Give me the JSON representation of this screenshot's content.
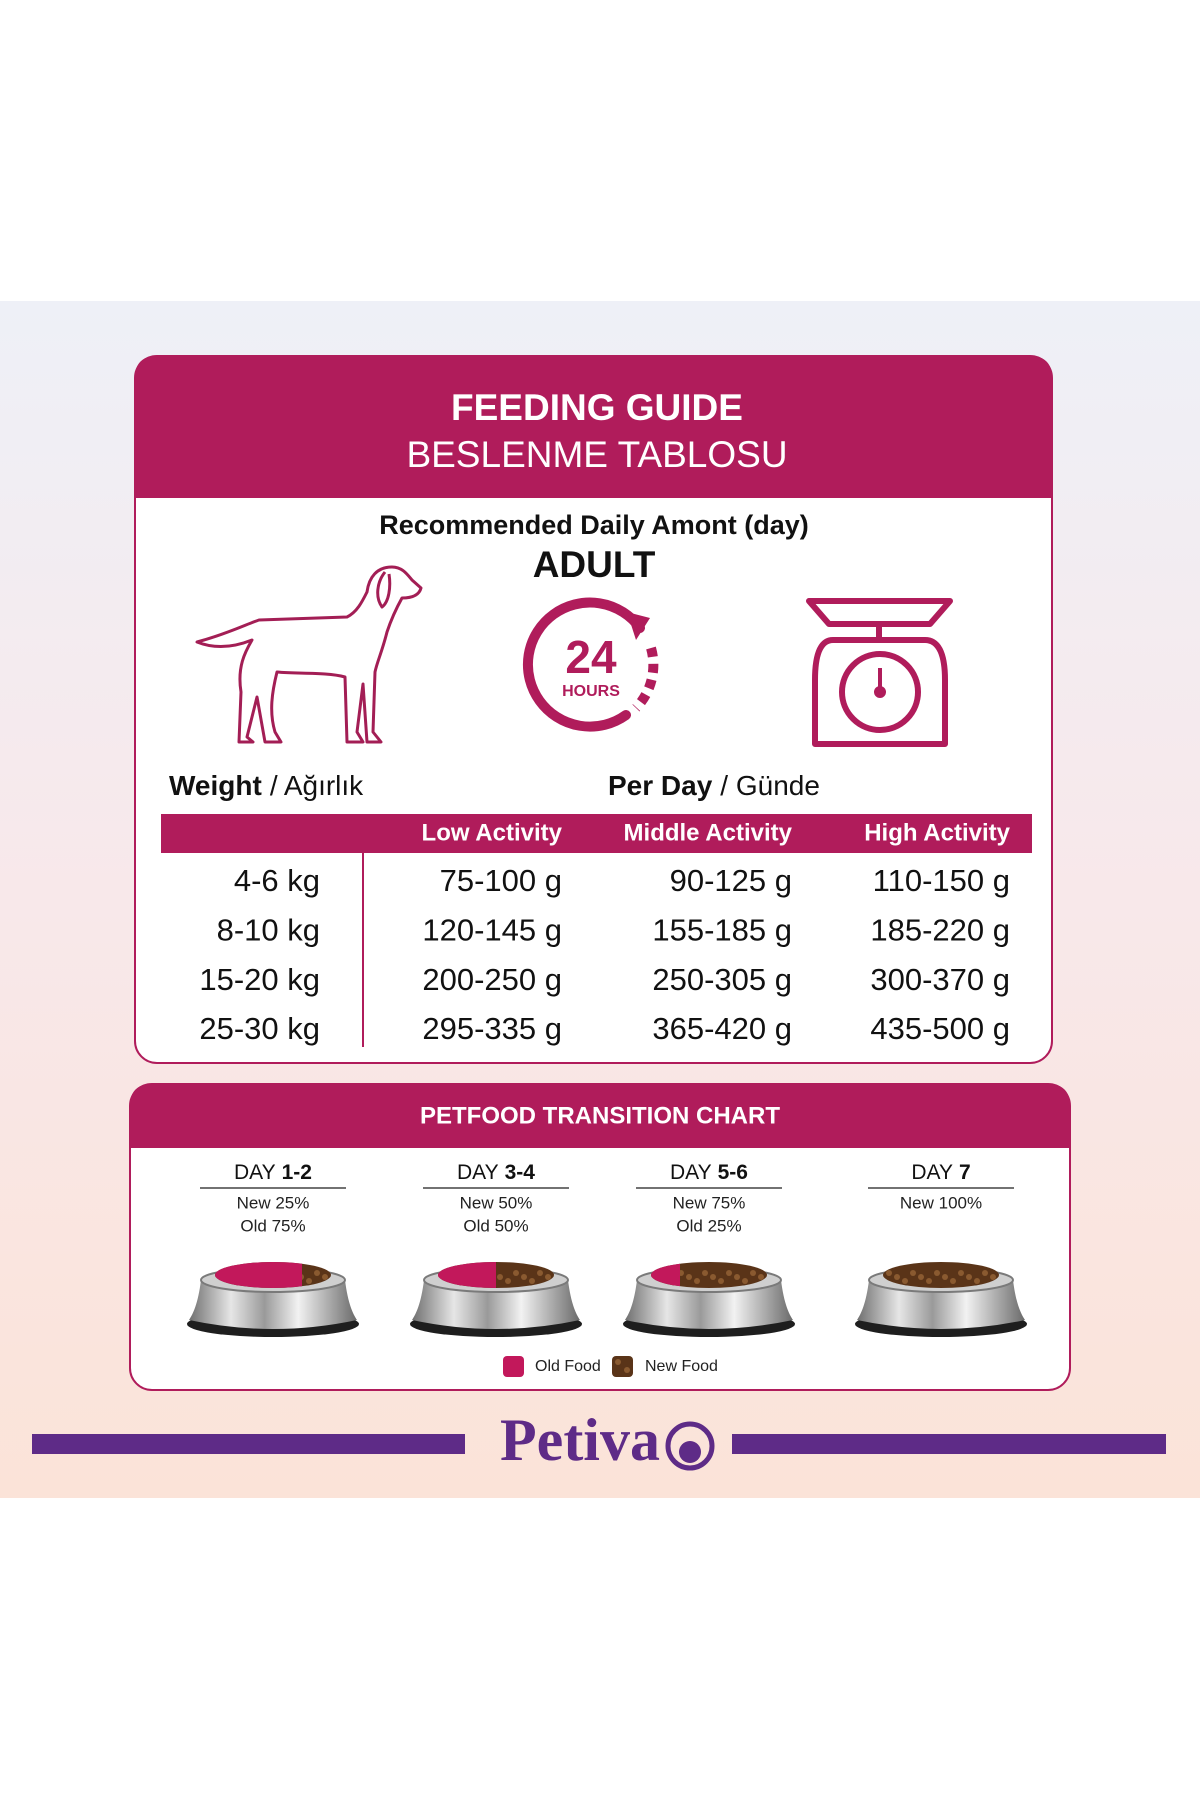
{
  "header": {
    "title": "FEEDING GUIDE",
    "subtitle": "BESLENME TABLOSU"
  },
  "intro": {
    "heading": "Recommended Daily Amont (day)",
    "stage": "ADULT"
  },
  "icons": {
    "clock_number": "24",
    "clock_unit": "HOURS"
  },
  "labels": {
    "weight": {
      "bold": "Weight",
      "rest": "/ Ağırlık"
    },
    "per_day": {
      "bold": "Per Day",
      "rest": "/ Günde"
    }
  },
  "table": {
    "columns": [
      "Low Activity",
      "Middle Activity",
      "High Activity"
    ],
    "rows": [
      [
        "4-6 kg",
        "75-100 g",
        "90-125 g",
        "110-150 g"
      ],
      [
        "8-10 kg",
        "120-145 g",
        "155-185 g",
        "185-220 g"
      ],
      [
        "15-20 kg",
        "200-250 g",
        "250-305 g",
        "300-370 g"
      ],
      [
        "25-30 kg",
        "295-335 g",
        "365-420 g",
        "435-500 g"
      ]
    ]
  },
  "transition": {
    "title": "PETFOOD TRANSITION CHART",
    "days": [
      {
        "prefix": "DAY",
        "range": "1-2",
        "lines": [
          "New 25%",
          "Old 75%"
        ]
      },
      {
        "prefix": "DAY",
        "range": "3-4",
        "lines": [
          "New 50%",
          "Old 50%"
        ]
      },
      {
        "prefix": "DAY",
        "range": "5-6",
        "lines": [
          "New 75%",
          "Old 25%"
        ]
      },
      {
        "prefix": "DAY",
        "range": "7",
        "lines": [
          "New 100%"
        ]
      }
    ],
    "legend": [
      "Old Food",
      "New Food"
    ]
  },
  "brand": "Petiva"
}
